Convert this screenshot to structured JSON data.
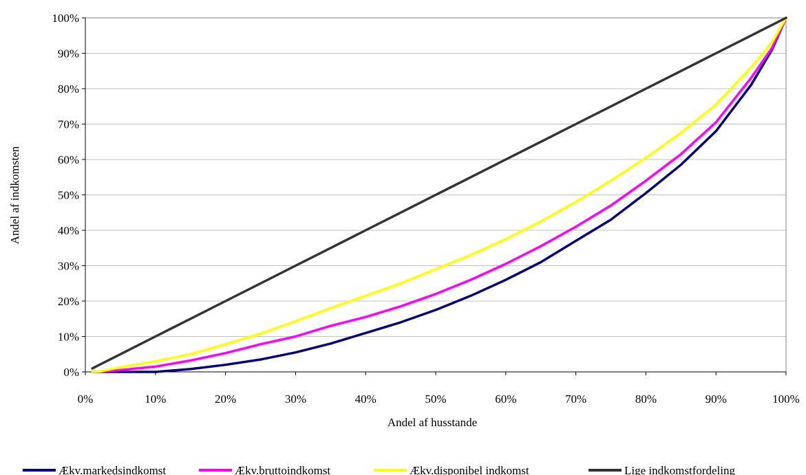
{
  "chart_data": {
    "type": "line",
    "title": "",
    "xlabel": "Andel af husstande",
    "ylabel": "Andel af indkomsten",
    "xlim": [
      0,
      100
    ],
    "ylim": [
      0,
      100
    ],
    "x_ticks": [
      "0%",
      "10%",
      "20%",
      "30%",
      "40%",
      "50%",
      "60%",
      "70%",
      "80%",
      "90%",
      "100%"
    ],
    "y_ticks": [
      "0%",
      "10%",
      "20%",
      "30%",
      "40%",
      "50%",
      "60%",
      "70%",
      "80%",
      "90%",
      "100%"
    ],
    "grid": "horizontal",
    "legend_position": "bottom",
    "x": [
      1,
      2,
      5,
      10,
      15,
      20,
      25,
      30,
      35,
      40,
      45,
      50,
      55,
      60,
      65,
      70,
      75,
      80,
      85,
      90,
      95,
      98,
      100
    ],
    "series": [
      {
        "name": "Ækv.markedsindkomst",
        "color": "#000080",
        "values": [
          0,
          0,
          0,
          0,
          0.8,
          2,
          3.5,
          5.5,
          8,
          11,
          14,
          17.5,
          21.5,
          26,
          31,
          37,
          43,
          50.5,
          58.5,
          68,
          81,
          91,
          100
        ]
      },
      {
        "name": "Ækv.bruttoindkomst",
        "color": "#ff00ff",
        "values": [
          0,
          0,
          0.5,
          1.5,
          3.2,
          5.3,
          7.8,
          10,
          13,
          15.5,
          18.5,
          22,
          26,
          30.5,
          35.5,
          41,
          47,
          54,
          61.5,
          70.5,
          83,
          91.5,
          100
        ]
      },
      {
        "name": "Ækv.disponibel indkomst",
        "color": "#ffff00",
        "values": [
          0,
          0.1,
          1.3,
          3,
          5,
          7.8,
          10.8,
          14.3,
          18,
          21.5,
          25,
          29,
          33,
          37.5,
          42.5,
          48,
          54,
          60.5,
          67.5,
          75.5,
          86,
          93,
          100
        ]
      },
      {
        "name": "Lige indkomstfordeling",
        "color": "#333333",
        "values": [
          1,
          2,
          5,
          10,
          15,
          20,
          25,
          30,
          35,
          40,
          45,
          50,
          55,
          60,
          65,
          70,
          75,
          80,
          85,
          90,
          95,
          98,
          100
        ]
      }
    ]
  }
}
